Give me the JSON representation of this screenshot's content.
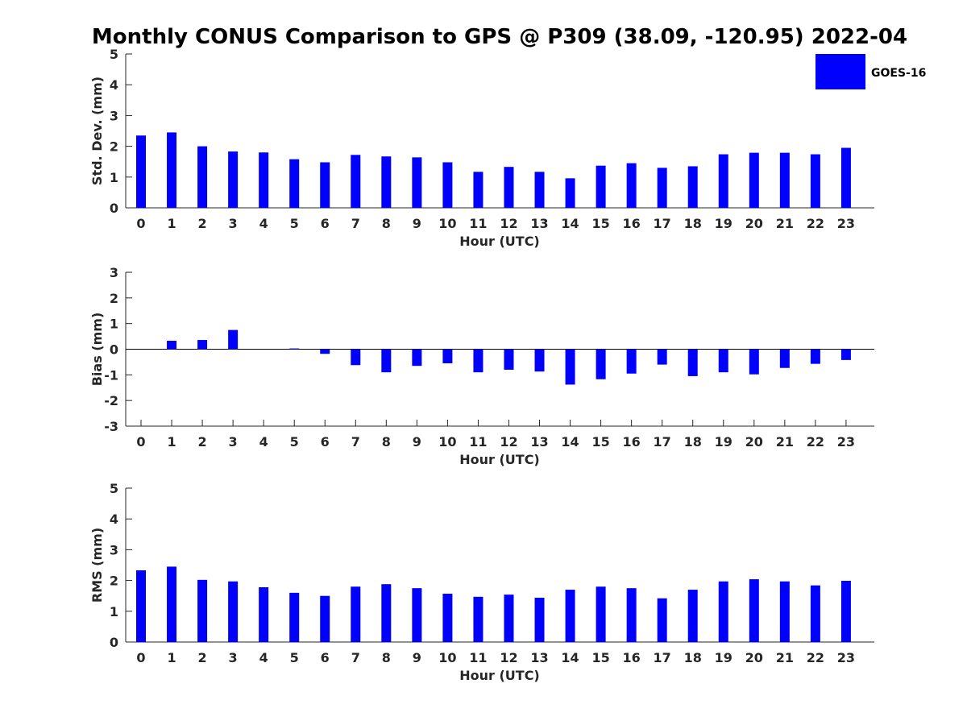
{
  "chart_data": {
    "title": "Monthly CONUS Comparison to GPS @ P309 (38.09, -120.95) 2022-04",
    "legend": {
      "label": "GOES-16",
      "color": "#0000ff",
      "position": "top-right"
    },
    "panels": [
      {
        "type": "bar",
        "name": "std-dev",
        "ylabel": "Std. Dev. (mm)",
        "xlabel": "Hour (UTC)",
        "ylim": [
          0,
          5
        ],
        "yticks": [
          0,
          1,
          2,
          3,
          4,
          5
        ],
        "categories": [
          "0",
          "1",
          "2",
          "3",
          "4",
          "5",
          "6",
          "7",
          "8",
          "9",
          "10",
          "11",
          "12",
          "13",
          "14",
          "15",
          "16",
          "17",
          "18",
          "19",
          "20",
          "21",
          "22",
          "23"
        ],
        "series": [
          {
            "name": "GOES-16",
            "values": [
              2.35,
              2.45,
              2.0,
              1.83,
              1.8,
              1.58,
              1.48,
              1.72,
              1.67,
              1.64,
              1.48,
              1.17,
              1.33,
              1.17,
              0.96,
              1.37,
              1.45,
              1.3,
              1.35,
              1.74,
              1.79,
              1.79,
              1.74,
              1.95
            ]
          }
        ]
      },
      {
        "type": "bar",
        "name": "bias",
        "ylabel": "Bias (mm)",
        "xlabel": "Hour (UTC)",
        "ylim": [
          -3,
          3
        ],
        "yticks": [
          -3,
          -2,
          -1,
          0,
          1,
          2,
          3
        ],
        "categories": [
          "0",
          "1",
          "2",
          "3",
          "4",
          "5",
          "6",
          "7",
          "8",
          "9",
          "10",
          "11",
          "12",
          "13",
          "14",
          "15",
          "16",
          "17",
          "18",
          "19",
          "20",
          "21",
          "22",
          "23"
        ],
        "series": [
          {
            "name": "GOES-16",
            "values": [
              0.0,
              0.33,
              0.36,
              0.75,
              0.0,
              0.03,
              -0.18,
              -0.62,
              -0.9,
              -0.65,
              -0.55,
              -0.9,
              -0.8,
              -0.87,
              -1.38,
              -1.17,
              -0.95,
              -0.6,
              -1.05,
              -0.9,
              -0.98,
              -0.73,
              -0.57,
              -0.42
            ]
          }
        ]
      },
      {
        "type": "bar",
        "name": "rms",
        "ylabel": "RMS (mm)",
        "xlabel": "Hour (UTC)",
        "ylim": [
          0,
          5
        ],
        "yticks": [
          0,
          1,
          2,
          3,
          4,
          5
        ],
        "categories": [
          "0",
          "1",
          "2",
          "3",
          "4",
          "5",
          "6",
          "7",
          "8",
          "9",
          "10",
          "11",
          "12",
          "13",
          "14",
          "15",
          "16",
          "17",
          "18",
          "19",
          "20",
          "21",
          "22",
          "23"
        ],
        "series": [
          {
            "name": "GOES-16",
            "values": [
              2.33,
              2.45,
              2.02,
              1.97,
              1.78,
              1.6,
              1.5,
              1.8,
              1.88,
              1.75,
              1.57,
              1.47,
              1.54,
              1.44,
              1.7,
              1.8,
              1.75,
              1.42,
              1.7,
              1.97,
              2.04,
              1.97,
              1.84,
              1.99
            ]
          }
        ]
      }
    ]
  }
}
